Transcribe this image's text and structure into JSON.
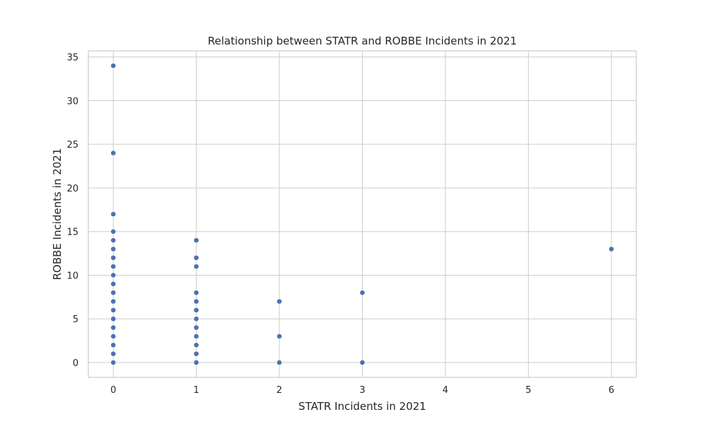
{
  "chart_data": {
    "type": "scatter",
    "title": "Relationship between STATR and ROBBE Incidents in 2021",
    "xlabel": "STATR Incidents in 2021",
    "ylabel": "ROBBE Incidents in 2021",
    "xlim": [
      -0.3,
      6.3
    ],
    "ylim": [
      -1.7,
      35.7
    ],
    "xticks": [
      0,
      1,
      2,
      3,
      4,
      5,
      6
    ],
    "yticks": [
      0,
      5,
      10,
      15,
      20,
      25,
      30,
      35
    ],
    "grid": true,
    "point_color": "#4c72b0",
    "points": [
      {
        "x": 0,
        "y": 34
      },
      {
        "x": 0,
        "y": 24
      },
      {
        "x": 0,
        "y": 17
      },
      {
        "x": 0,
        "y": 15
      },
      {
        "x": 0,
        "y": 14
      },
      {
        "x": 0,
        "y": 13
      },
      {
        "x": 0,
        "y": 12
      },
      {
        "x": 0,
        "y": 11
      },
      {
        "x": 0,
        "y": 10
      },
      {
        "x": 0,
        "y": 9
      },
      {
        "x": 0,
        "y": 8
      },
      {
        "x": 0,
        "y": 7
      },
      {
        "x": 0,
        "y": 6
      },
      {
        "x": 0,
        "y": 5
      },
      {
        "x": 0,
        "y": 4
      },
      {
        "x": 0,
        "y": 3
      },
      {
        "x": 0,
        "y": 2
      },
      {
        "x": 0,
        "y": 1
      },
      {
        "x": 0,
        "y": 0
      },
      {
        "x": 1,
        "y": 14
      },
      {
        "x": 1,
        "y": 12
      },
      {
        "x": 1,
        "y": 11
      },
      {
        "x": 1,
        "y": 8
      },
      {
        "x": 1,
        "y": 7
      },
      {
        "x": 1,
        "y": 6
      },
      {
        "x": 1,
        "y": 5
      },
      {
        "x": 1,
        "y": 4
      },
      {
        "x": 1,
        "y": 3
      },
      {
        "x": 1,
        "y": 2
      },
      {
        "x": 1,
        "y": 1
      },
      {
        "x": 1,
        "y": 0
      },
      {
        "x": 2,
        "y": 7
      },
      {
        "x": 2,
        "y": 3
      },
      {
        "x": 2,
        "y": 0
      },
      {
        "x": 3,
        "y": 8
      },
      {
        "x": 3,
        "y": 0
      },
      {
        "x": 6,
        "y": 13
      }
    ]
  }
}
